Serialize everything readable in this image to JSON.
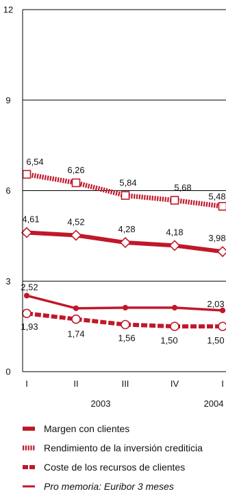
{
  "chart_data": {
    "type": "line",
    "categories": [
      "I",
      "II",
      "III",
      "IV",
      "I"
    ],
    "year_labels": [
      "2003",
      "2004"
    ],
    "ylim": [
      0,
      12
    ],
    "y_ticks": [
      "0",
      "3",
      "6",
      "9",
      "12"
    ],
    "grid": true,
    "legend_position": "bottom",
    "colors": {
      "accent": "#c0182a",
      "grid": "#000000"
    },
    "series": [
      {
        "name": "Rendimiento de la inversión crediticia",
        "style": "hatched",
        "values": [
          6.54,
          6.26,
          5.84,
          5.68,
          5.48
        ],
        "labels": [
          "6,54",
          "6,26",
          "5,84",
          "5,68",
          "5,48"
        ]
      },
      {
        "name": "Margen con clientes",
        "style": "solid",
        "values": [
          4.61,
          4.52,
          4.28,
          4.18,
          3.98
        ],
        "labels": [
          "4,61",
          "4,52",
          "4,28",
          "4,18",
          "3,98"
        ]
      },
      {
        "name": "Pro memoria: Euribor 3 meses",
        "style": "thin",
        "values": [
          2.52,
          2.1,
          2.12,
          2.12,
          2.03
        ],
        "labels": [
          "2,52",
          "",
          "",
          "",
          "2,03"
        ]
      },
      {
        "name": "Coste de los recursos de clientes",
        "style": "dashed",
        "values": [
          1.93,
          1.74,
          1.56,
          1.5,
          1.5
        ],
        "labels": [
          "1,93",
          "1,74",
          "1,56",
          "1,50",
          "1,50"
        ]
      }
    ],
    "legend": [
      {
        "label": "Margen con clientes",
        "style": "solid"
      },
      {
        "label": "Rendimiento de la inversión crediticia",
        "style": "hatched"
      },
      {
        "label": "Coste de los recursos de clientes",
        "style": "dashed"
      },
      {
        "label": "Pro memoria: Euribor 3 meses",
        "style": "thin"
      }
    ]
  }
}
